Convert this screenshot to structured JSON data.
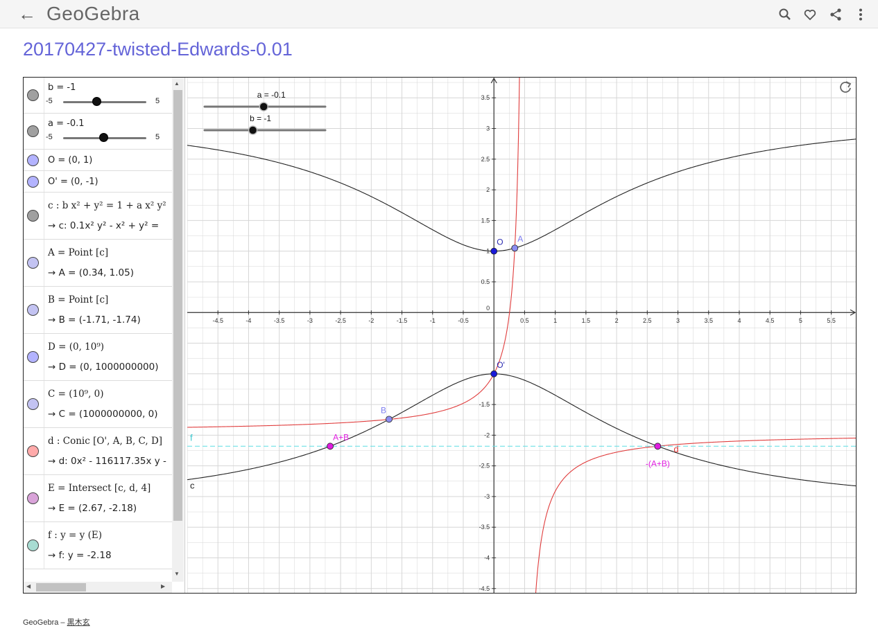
{
  "header": {
    "back_icon": "arrow-left",
    "logo": "GeoGebra",
    "icons": [
      "search-icon",
      "heart-icon",
      "share-icon",
      "more-vertical-icon"
    ]
  },
  "page_title": "20170427-twisted-Edwards-0.01",
  "algebra": {
    "rows": [
      {
        "kind": "slider",
        "label": "b = -1",
        "min": "-5",
        "max": "5",
        "value": -1,
        "color": "#a0a0a0"
      },
      {
        "kind": "slider",
        "label": "a = -0.1",
        "min": "-5",
        "max": "5",
        "value": -0.1,
        "color": "#a0a0a0"
      },
      {
        "kind": "single",
        "label": "O = (0, 1)",
        "color": "#b3b3ff"
      },
      {
        "kind": "single",
        "label": "O' = (0, -1)",
        "color": "#b3b3ff"
      },
      {
        "kind": "double",
        "definition": "c : b x² + y² = 1 + a x² y²",
        "output": "→  c: 0.1x² y² - x² + y² =",
        "color": "#a0a0a0"
      },
      {
        "kind": "double",
        "definition": "A = Point [c]",
        "output": "→  A = (0.34, 1.05)",
        "color": "#c3c3f2"
      },
      {
        "kind": "double",
        "definition": "B = Point [c]",
        "output": "→  B = (-1.71, -1.74)",
        "color": "#c3c3f2"
      },
      {
        "kind": "double",
        "definition": "D = (0, 10⁹)",
        "output": "→  D = (0, 1000000000)",
        "color": "#b3b3ff"
      },
      {
        "kind": "double",
        "definition": "C = (10⁹, 0)",
        "output": "→  C = (1000000000, 0)",
        "color": "#c3c3f2"
      },
      {
        "kind": "double",
        "definition": "d : Conic [O', A, B, C, D]",
        "output": "→  d: 0x² - 116117.35x y -",
        "color": "#ffaaaa"
      },
      {
        "kind": "double",
        "definition": "E = Intersect [c, d, 4]",
        "output": "→  E = (2.67, -2.18)",
        "color": "#d9a3d9"
      },
      {
        "kind": "double",
        "definition": "f : y = y (E)",
        "output": "→  f: y = -2.18",
        "color": "#a8dcd2"
      }
    ]
  },
  "graphics": {
    "sliders": [
      {
        "label": "a = -0.1",
        "value": -0.1,
        "min": -5,
        "max": 5
      },
      {
        "label": "b = -1",
        "value": -1,
        "min": -5,
        "max": 5
      }
    ],
    "reset_icon": "refresh-icon",
    "x_range": [
      -5,
      5.9
    ],
    "y_range": [
      -4.57,
      3.83
    ],
    "x_ticks": [
      "-4.5",
      "-4",
      "-3.5",
      "-3",
      "-2.5",
      "-2",
      "-1.5",
      "-1",
      "-0.5",
      "0.5",
      "1",
      "1.5",
      "2",
      "2.5",
      "3",
      "3.5",
      "4",
      "4.5",
      "5",
      "5.5"
    ],
    "y_ticks": [
      "3.5",
      "3",
      "2.5",
      "2",
      "1.5",
      "1",
      "0.5",
      "-1.5",
      "-2",
      "-2.5",
      "-3",
      "-3.5",
      "-4",
      "-4.5"
    ],
    "origin_label": "0",
    "points": [
      {
        "name": "O",
        "label": "O",
        "x": 0,
        "y": 1,
        "color": "#1a1ad9",
        "label_color": "#2a2ab0"
      },
      {
        "name": "A",
        "label": "A",
        "x": 0.34,
        "y": 1.05,
        "color": "#8d8df2",
        "label_color": "#7d7df0"
      },
      {
        "name": "O'",
        "label": "O'",
        "x": 0,
        "y": -1,
        "color": "#1a1ad9",
        "label_color": "#2a2ab0"
      },
      {
        "name": "B",
        "label": "B",
        "x": -1.71,
        "y": -1.74,
        "color": "#8d8df2",
        "label_color": "#7d7df0"
      },
      {
        "name": "A+B",
        "label": "A+B",
        "x": -2.67,
        "y": -2.18,
        "color": "#e01ee0",
        "label_color": "#e01ee0"
      },
      {
        "name": "-(A+B)",
        "label": "-(A+B)",
        "x": 2.67,
        "y": -2.18,
        "color": "#e01ee0",
        "label_color": "#e01ee0"
      }
    ],
    "curve_labels": {
      "c": "c",
      "d": "d",
      "f": "f"
    },
    "colors": {
      "curve_c": "#222222",
      "curve_d": "#e03c3c",
      "line_f": "#6ee0e6",
      "grid": "#d6d6d6",
      "axis": "#333333"
    }
  },
  "footer": {
    "brand": "GeoGebra",
    "separator": " – ",
    "author": "黒木玄"
  }
}
